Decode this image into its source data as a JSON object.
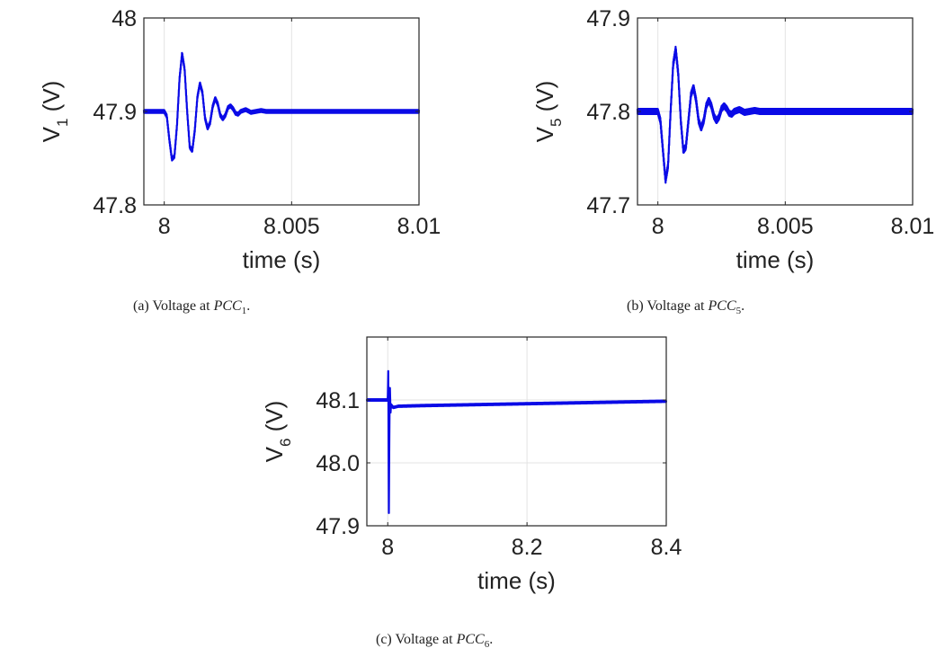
{
  "chart_data": [
    {
      "type": "line",
      "ylabel_main": "V",
      "ylabel_sub": "1",
      "ylabel_unit": " (V)",
      "xlabel": "time (s)",
      "xlim": [
        7.9992,
        8.01
      ],
      "ylim": [
        47.8,
        48.0
      ],
      "xticks": [
        8,
        8.005,
        8.01
      ],
      "xtick_labels": [
        "8",
        "8.005",
        "8.01"
      ],
      "yticks": [
        47.8,
        47.9,
        48.0
      ],
      "ytick_labels": [
        "47.8",
        "47.9",
        "48"
      ],
      "grid": true,
      "series": [
        {
          "color": "#0a0ae6",
          "ripple": 0.0016,
          "x": [
            7.9992,
            8.0,
            8.0001,
            8.0002,
            8.0003,
            8.0004,
            8.0005,
            8.0006,
            8.0007,
            8.0008,
            8.0009,
            8.001,
            8.0011,
            8.0012,
            8.0013,
            8.0014,
            8.0015,
            8.0016,
            8.0017,
            8.0018,
            8.0019,
            8.002,
            8.0021,
            8.0022,
            8.0023,
            8.0024,
            8.0025,
            8.0026,
            8.0027,
            8.0028,
            8.0029,
            8.003,
            8.0032,
            8.0034,
            8.0036,
            8.0038,
            8.004,
            8.0042,
            8.0045,
            8.005,
            8.006,
            8.007,
            8.008,
            8.009,
            8.01
          ],
          "y": [
            47.9,
            47.9,
            47.895,
            47.87,
            47.849,
            47.852,
            47.885,
            47.935,
            47.962,
            47.945,
            47.9,
            47.862,
            47.858,
            47.88,
            47.915,
            47.93,
            47.92,
            47.893,
            47.882,
            47.888,
            47.905,
            47.914,
            47.908,
            47.896,
            47.892,
            47.896,
            47.904,
            47.906,
            47.903,
            47.898,
            47.897,
            47.9,
            47.902,
            47.899,
            47.9,
            47.901,
            47.9,
            47.9,
            47.9,
            47.9,
            47.9,
            47.9,
            47.9,
            47.9,
            47.9
          ]
        }
      ]
    },
    {
      "type": "line",
      "ylabel_main": "V",
      "ylabel_sub": "5",
      "ylabel_unit": " (V)",
      "xlabel": "time (s)",
      "xlim": [
        7.9992,
        8.01
      ],
      "ylim": [
        47.7,
        47.9
      ],
      "xticks": [
        8,
        8.005,
        8.01
      ],
      "xtick_labels": [
        "8",
        "8.005",
        "8.01"
      ],
      "yticks": [
        47.7,
        47.8,
        47.9
      ],
      "ytick_labels": [
        "47.7",
        "47.8",
        "47.9"
      ],
      "grid": true,
      "series": [
        {
          "color": "#0a0ae6",
          "ripple": 0.0028,
          "x": [
            7.9992,
            8.0,
            8.0001,
            8.0002,
            8.0003,
            8.0004,
            8.0005,
            8.0006,
            8.0007,
            8.0008,
            8.0009,
            8.001,
            8.0011,
            8.0012,
            8.0013,
            8.0014,
            8.0015,
            8.0016,
            8.0017,
            8.0018,
            8.0019,
            8.002,
            8.0021,
            8.0022,
            8.0023,
            8.0024,
            8.0025,
            8.0026,
            8.0027,
            8.0028,
            8.0029,
            8.003,
            8.0032,
            8.0034,
            8.0036,
            8.0038,
            8.004,
            8.0042,
            8.0045,
            8.005,
            8.006,
            8.007,
            8.008,
            8.009,
            8.01
          ],
          "y": [
            47.8,
            47.8,
            47.79,
            47.758,
            47.726,
            47.742,
            47.8,
            47.85,
            47.867,
            47.84,
            47.79,
            47.758,
            47.762,
            47.79,
            47.818,
            47.826,
            47.812,
            47.79,
            47.782,
            47.79,
            47.806,
            47.812,
            47.806,
            47.795,
            47.79,
            47.794,
            47.803,
            47.806,
            47.803,
            47.798,
            47.797,
            47.8,
            47.802,
            47.799,
            47.8,
            47.801,
            47.8,
            47.8,
            47.8,
            47.8,
            47.8,
            47.8,
            47.8,
            47.8,
            47.8
          ]
        }
      ]
    },
    {
      "type": "line",
      "ylabel_main": "V",
      "ylabel_sub": "6",
      "ylabel_unit": " (V)",
      "xlabel": "time (s)",
      "xlim": [
        7.97,
        8.4
      ],
      "ylim": [
        47.9,
        48.2
      ],
      "xticks": [
        8,
        8.2,
        8.4
      ],
      "xtick_labels": [
        "8",
        "8.2",
        "8.4"
      ],
      "yticks": [
        47.9,
        48.0,
        48.1
      ],
      "ytick_labels": [
        "47.9",
        "48.0",
        "48.1"
      ],
      "grid": true,
      "series": [
        {
          "color": "#0a0ae6",
          "ripple": 0.0012,
          "x": [
            7.97,
            7.999,
            8.0,
            8.0008,
            8.0016,
            8.0024,
            8.0032,
            8.004,
            8.005,
            8.008,
            8.015,
            8.05,
            8.1,
            8.2,
            8.3,
            8.4
          ],
          "y": [
            48.1,
            48.1,
            48.1,
            48.15,
            47.915,
            48.06,
            48.12,
            48.08,
            48.092,
            48.088,
            48.09,
            48.091,
            48.092,
            48.094,
            48.096,
            48.098
          ]
        }
      ]
    }
  ],
  "captions": [
    {
      "prefix": "(a) Voltage at ",
      "pcc": "PCC",
      "sub": "1",
      "suffix": "."
    },
    {
      "prefix": "(b) Voltage at ",
      "pcc": "PCC",
      "sub": "5",
      "suffix": "."
    },
    {
      "prefix": "(c) Voltage at ",
      "pcc": "PCC",
      "sub": "6",
      "suffix": "."
    }
  ]
}
